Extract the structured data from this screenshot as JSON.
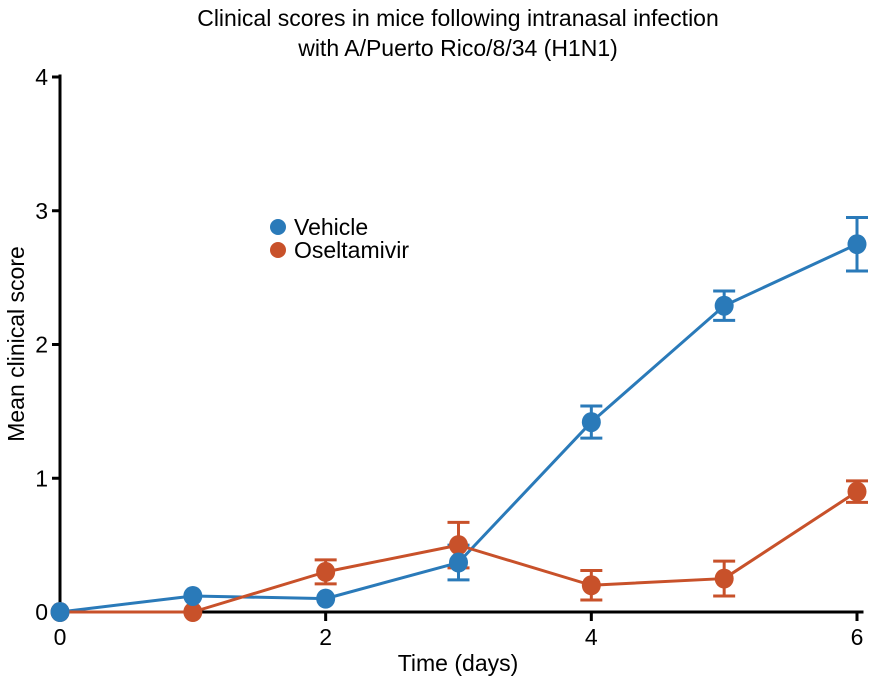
{
  "figure": {
    "background": "#ffffff",
    "text_color": "#000000",
    "axis_color": "#000000"
  },
  "chart_data": {
    "type": "line",
    "title": "Clinical scores in mice following intranasal infection",
    "subtitle": "with A/Puerto Rico/8/34 (H1N1)",
    "xlabel": "Time (days)",
    "ylabel": "Mean clinical score",
    "x": [
      0,
      1,
      2,
      3,
      4,
      5,
      6
    ],
    "xlim": [
      0,
      6
    ],
    "ylim": [
      0,
      4
    ],
    "xticks": [
      0,
      2,
      4,
      6
    ],
    "yticks": [
      0,
      1,
      2,
      3,
      4
    ],
    "grid": false,
    "error_bars": true,
    "legend_position": "inside-upper-left",
    "series": [
      {
        "name": "Vehicle",
        "color": "#2a7ab9",
        "marker": "circle",
        "values": [
          0,
          0.12,
          0.1,
          0.37,
          1.42,
          2.29,
          2.75
        ],
        "errors": [
          0,
          0,
          0,
          0.13,
          0.12,
          0.11,
          0.2
        ]
      },
      {
        "name": "Oseltamivir",
        "color": "#c8512a",
        "marker": "circle",
        "values": [
          0,
          0,
          0.3,
          0.5,
          0.2,
          0.25,
          0.9
        ],
        "errors": [
          0,
          0,
          0.09,
          0.17,
          0.11,
          0.13,
          0.08
        ]
      }
    ]
  }
}
